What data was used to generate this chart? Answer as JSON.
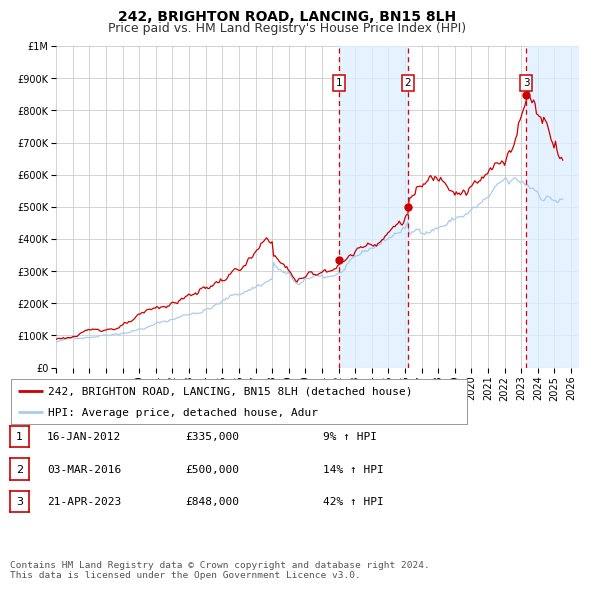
{
  "title": "242, BRIGHTON ROAD, LANCING, BN15 8LH",
  "subtitle": "Price paid vs. HM Land Registry's House Price Index (HPI)",
  "ylim": [
    0,
    1000000
  ],
  "xlim_start": 1995.0,
  "xlim_end": 2026.5,
  "yticks": [
    0,
    100000,
    200000,
    300000,
    400000,
    500000,
    600000,
    700000,
    800000,
    900000,
    1000000
  ],
  "ytick_labels": [
    "£0",
    "£100K",
    "£200K",
    "£300K",
    "£400K",
    "£500K",
    "£600K",
    "£700K",
    "£800K",
    "£900K",
    "£1M"
  ],
  "xticks": [
    1995,
    1996,
    1997,
    1998,
    1999,
    2000,
    2001,
    2002,
    2003,
    2004,
    2005,
    2006,
    2007,
    2008,
    2009,
    2010,
    2011,
    2012,
    2013,
    2014,
    2015,
    2016,
    2017,
    2018,
    2019,
    2020,
    2021,
    2022,
    2023,
    2024,
    2025,
    2026
  ],
  "sale_color": "#cc0000",
  "hpi_color": "#aaccee",
  "background_color": "#ffffff",
  "grid_color": "#cccccc",
  "sale_points": [
    {
      "year": 2012.04,
      "price": 335000,
      "label": "1"
    },
    {
      "year": 2016.17,
      "price": 500000,
      "label": "2"
    },
    {
      "year": 2023.3,
      "price": 848000,
      "label": "3"
    }
  ],
  "vline_color": "#dd0000",
  "shade_regions": [
    {
      "x_start": 2012.04,
      "x_end": 2016.17
    },
    {
      "x_start": 2023.3,
      "x_end": 2026.5
    }
  ],
  "legend_sale_label": "242, BRIGHTON ROAD, LANCING, BN15 8LH (detached house)",
  "legend_hpi_label": "HPI: Average price, detached house, Adur",
  "table_data": [
    {
      "num": "1",
      "date": "16-JAN-2012",
      "price": "£335,000",
      "change": "9% ↑ HPI"
    },
    {
      "num": "2",
      "date": "03-MAR-2016",
      "price": "£500,000",
      "change": "14% ↑ HPI"
    },
    {
      "num": "3",
      "date": "21-APR-2023",
      "price": "£848,000",
      "change": "42% ↑ HPI"
    }
  ],
  "footnote": "Contains HM Land Registry data © Crown copyright and database right 2024.\nThis data is licensed under the Open Government Licence v3.0.",
  "title_fontsize": 10,
  "subtitle_fontsize": 9,
  "tick_fontsize": 7,
  "legend_fontsize": 8,
  "table_fontsize": 8
}
